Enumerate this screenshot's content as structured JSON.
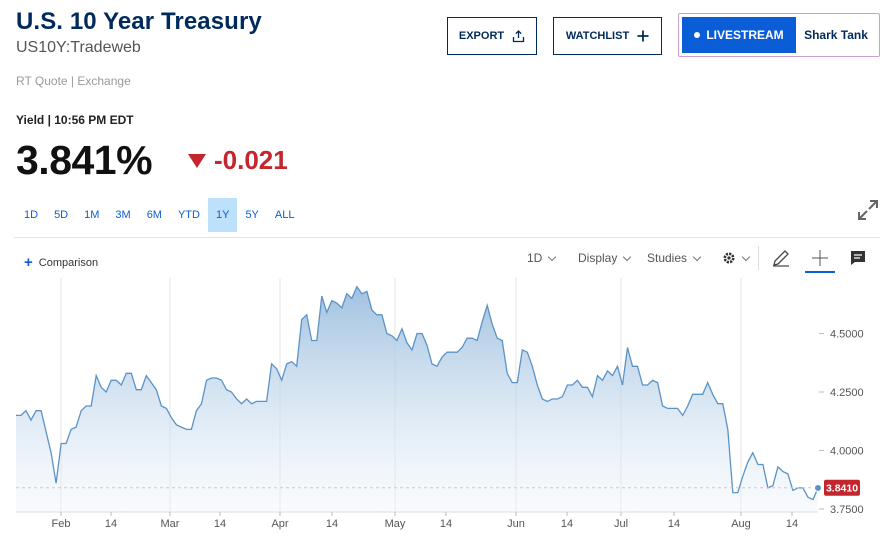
{
  "header": {
    "title": "U.S. 10 Year Treasury",
    "symbol": "US10Y:Tradeweb",
    "rt_quote": "RT Quote | Exchange"
  },
  "actions": {
    "export_label": "EXPORT",
    "watchlist_label": "WATCHLIST",
    "livestream_label": "LIVESTREAM",
    "livestream_show": "Shark Tank"
  },
  "quote": {
    "yield_label": "Yield | 10:56 PM EDT",
    "price": "3.841%",
    "change": "-0.021",
    "change_color": "#c4262e"
  },
  "ranges": [
    "1D",
    "5D",
    "1M",
    "3M",
    "6M",
    "YTD",
    "1Y",
    "5Y",
    "ALL"
  ],
  "active_range": "1Y",
  "toolbar": {
    "comparison": "Comparison",
    "interval": "1D",
    "display": "Display",
    "studies": "Studies"
  },
  "chart_data": {
    "type": "area",
    "y_ticks": [
      "4.5000",
      "4.2500",
      "4.0000",
      "3.7500"
    ],
    "ylim": [
      3.75,
      4.75
    ],
    "x_ticks": [
      "Feb",
      "14",
      "Mar",
      "14",
      "Apr",
      "14",
      "May",
      "14",
      "Jun",
      "14",
      "Jul",
      "14",
      "Aug",
      "14"
    ],
    "last_value_label": "3.8410",
    "last_value": 3.841,
    "line_color": "#5b93c7",
    "values": [
      4.15,
      4.15,
      4.17,
      4.13,
      4.17,
      4.17,
      4.08,
      3.99,
      3.86,
      4.03,
      4.03,
      4.09,
      4.1,
      4.17,
      4.19,
      4.19,
      4.32,
      4.27,
      4.25,
      4.3,
      4.3,
      4.28,
      4.33,
      4.33,
      4.26,
      4.26,
      4.32,
      4.29,
      4.26,
      4.19,
      4.18,
      4.14,
      4.11,
      4.1,
      4.09,
      4.09,
      4.17,
      4.2,
      4.3,
      4.31,
      4.31,
      4.3,
      4.26,
      4.25,
      4.22,
      4.2,
      4.22,
      4.2,
      4.21,
      4.21,
      4.21,
      4.37,
      4.35,
      4.3,
      4.37,
      4.38,
      4.36,
      4.56,
      4.58,
      4.47,
      4.47,
      4.66,
      4.59,
      4.64,
      4.63,
      4.61,
      4.67,
      4.65,
      4.7,
      4.67,
      4.68,
      4.6,
      4.58,
      4.58,
      4.5,
      4.49,
      4.47,
      4.52,
      4.46,
      4.43,
      4.5,
      4.5,
      4.45,
      4.37,
      4.36,
      4.4,
      4.42,
      4.42,
      4.42,
      4.44,
      4.48,
      4.48,
      4.47,
      4.55,
      4.62,
      4.54,
      4.48,
      4.47,
      4.33,
      4.29,
      4.29,
      4.43,
      4.42,
      4.36,
      4.28,
      4.22,
      4.21,
      4.22,
      4.22,
      4.23,
      4.28,
      4.28,
      4.3,
      4.27,
      4.27,
      4.23,
      4.32,
      4.3,
      4.34,
      4.32,
      4.36,
      4.28,
      4.44,
      4.36,
      4.36,
      4.28,
      4.28,
      4.3,
      4.29,
      4.19,
      4.18,
      4.18,
      4.18,
      4.15,
      4.19,
      4.24,
      4.24,
      4.24,
      4.29,
      4.24,
      4.2,
      4.2,
      4.09,
      3.82,
      3.82,
      3.89,
      3.95,
      3.99,
      3.94,
      3.94,
      3.84,
      3.85,
      3.93,
      3.91,
      3.9,
      3.83,
      3.84,
      3.84,
      3.8,
      3.79,
      3.84
    ]
  },
  "colors": {
    "brand_navy": "#002a5c",
    "accent_blue": "#0b5dd7",
    "active_range_bg": "#bde0fb",
    "negative_red": "#c4262e"
  }
}
